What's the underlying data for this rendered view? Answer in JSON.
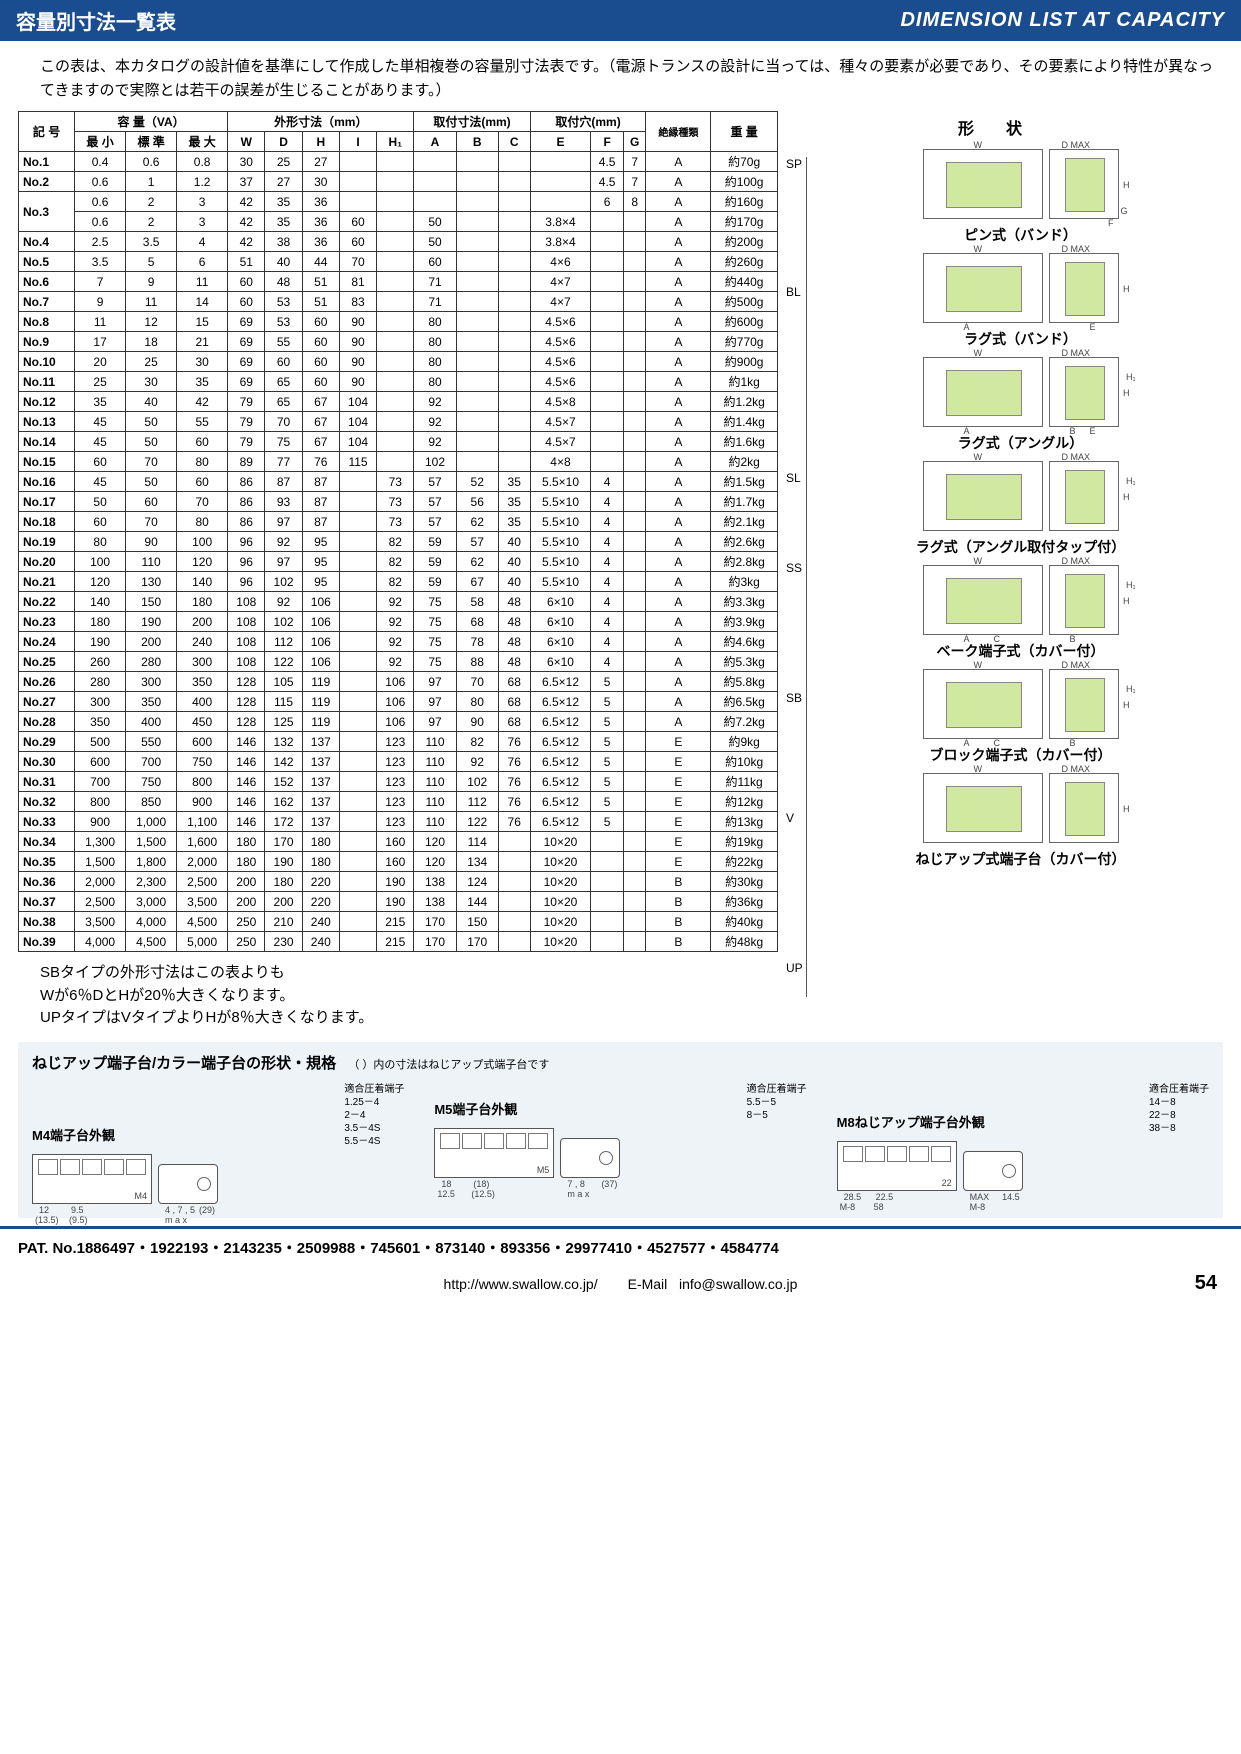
{
  "header": {
    "jp": "容量別寸法一覧表",
    "en": "DIMENSION LIST AT CAPACITY"
  },
  "intro": "この表は、本カタログの設計値を基準にして作成した単相複巻の容量別寸法表です。（電源トランスの設計に当っては、種々の要素が必要であり、その要素により特性が異なってきますので実際とは若干の誤差が生じることがあります。）",
  "table": {
    "headers": {
      "kigo": "記 号",
      "cap": "容 量（VA）",
      "cap_sub": [
        "最 小",
        "標 準",
        "最 大"
      ],
      "outer": "外形寸法（mm）",
      "outer_sub": [
        "W",
        "D",
        "H",
        "I",
        "H₁"
      ],
      "mount": "取付寸法(mm)",
      "mount_sub": [
        "A",
        "B",
        "C"
      ],
      "hole": "取付穴(mm)",
      "hole_sub": [
        "E",
        "F",
        "G"
      ],
      "ins": "絶縁種類",
      "wt": "重 量",
      "shape": "形　状"
    },
    "rows": [
      {
        "no": "No.1",
        "min": "0.4",
        "std": "0.6",
        "max": "0.8",
        "W": "30",
        "D": "25",
        "H": "27",
        "I": "",
        "H1": "",
        "A": "",
        "B": "",
        "C": "",
        "E": "",
        "F": "4.5",
        "G": "7",
        "ins": "A",
        "wt": "約70g"
      },
      {
        "no": "No.2",
        "min": "0.6",
        "std": "1",
        "max": "1.2",
        "W": "37",
        "D": "27",
        "H": "30",
        "I": "",
        "H1": "",
        "A": "",
        "B": "",
        "C": "",
        "E": "",
        "F": "4.5",
        "G": "7",
        "ins": "A",
        "wt": "約100g"
      },
      {
        "no": "No.3",
        "min": "0.6",
        "std": "2",
        "max": "3",
        "W": "42",
        "D": "35",
        "H": "36",
        "I": "",
        "H1": "",
        "A": "",
        "B": "",
        "C": "",
        "E": "",
        "F": "6",
        "G": "8",
        "ins": "A",
        "wt": "約160g",
        "rowspan": 2
      },
      {
        "no": "",
        "min": "0.6",
        "std": "2",
        "max": "3",
        "W": "42",
        "D": "35",
        "H": "36",
        "I": "60",
        "H1": "",
        "A": "50",
        "B": "",
        "C": "",
        "E": "3.8×4",
        "F": "",
        "G": "",
        "ins": "A",
        "wt": "約170g"
      },
      {
        "no": "No.4",
        "min": "2.5",
        "std": "3.5",
        "max": "4",
        "W": "42",
        "D": "38",
        "H": "36",
        "I": "60",
        "H1": "",
        "A": "50",
        "B": "",
        "C": "",
        "E": "3.8×4",
        "F": "",
        "G": "",
        "ins": "A",
        "wt": "約200g"
      },
      {
        "no": "No.5",
        "min": "3.5",
        "std": "5",
        "max": "6",
        "W": "51",
        "D": "40",
        "H": "44",
        "I": "70",
        "H1": "",
        "A": "60",
        "B": "",
        "C": "",
        "E": "4×6",
        "F": "",
        "G": "",
        "ins": "A",
        "wt": "約260g"
      },
      {
        "no": "No.6",
        "min": "7",
        "std": "9",
        "max": "11",
        "W": "60",
        "D": "48",
        "H": "51",
        "I": "81",
        "H1": "",
        "A": "71",
        "B": "",
        "C": "",
        "E": "4×7",
        "F": "",
        "G": "",
        "ins": "A",
        "wt": "約440g"
      },
      {
        "no": "No.7",
        "min": "9",
        "std": "11",
        "max": "14",
        "W": "60",
        "D": "53",
        "H": "51",
        "I": "83",
        "H1": "",
        "A": "71",
        "B": "",
        "C": "",
        "E": "4×7",
        "F": "",
        "G": "",
        "ins": "A",
        "wt": "約500g"
      },
      {
        "no": "No.8",
        "min": "11",
        "std": "12",
        "max": "15",
        "W": "69",
        "D": "53",
        "H": "60",
        "I": "90",
        "H1": "",
        "A": "80",
        "B": "",
        "C": "",
        "E": "4.5×6",
        "F": "",
        "G": "",
        "ins": "A",
        "wt": "約600g"
      },
      {
        "no": "No.9",
        "min": "17",
        "std": "18",
        "max": "21",
        "W": "69",
        "D": "55",
        "H": "60",
        "I": "90",
        "H1": "",
        "A": "80",
        "B": "",
        "C": "",
        "E": "4.5×6",
        "F": "",
        "G": "",
        "ins": "A",
        "wt": "約770g"
      },
      {
        "no": "No.10",
        "min": "20",
        "std": "25",
        "max": "30",
        "W": "69",
        "D": "60",
        "H": "60",
        "I": "90",
        "H1": "",
        "A": "80",
        "B": "",
        "C": "",
        "E": "4.5×6",
        "F": "",
        "G": "",
        "ins": "A",
        "wt": "約900g"
      },
      {
        "no": "No.11",
        "min": "25",
        "std": "30",
        "max": "35",
        "W": "69",
        "D": "65",
        "H": "60",
        "I": "90",
        "H1": "",
        "A": "80",
        "B": "",
        "C": "",
        "E": "4.5×6",
        "F": "",
        "G": "",
        "ins": "A",
        "wt": "約1kg"
      },
      {
        "no": "No.12",
        "min": "35",
        "std": "40",
        "max": "42",
        "W": "79",
        "D": "65",
        "H": "67",
        "I": "104",
        "H1": "",
        "A": "92",
        "B": "",
        "C": "",
        "E": "4.5×8",
        "F": "",
        "G": "",
        "ins": "A",
        "wt": "約1.2kg"
      },
      {
        "no": "No.13",
        "min": "45",
        "std": "50",
        "max": "55",
        "W": "79",
        "D": "70",
        "H": "67",
        "I": "104",
        "H1": "",
        "A": "92",
        "B": "",
        "C": "",
        "E": "4.5×7",
        "F": "",
        "G": "",
        "ins": "A",
        "wt": "約1.4kg"
      },
      {
        "no": "No.14",
        "min": "45",
        "std": "50",
        "max": "60",
        "W": "79",
        "D": "75",
        "H": "67",
        "I": "104",
        "H1": "",
        "A": "92",
        "B": "",
        "C": "",
        "E": "4.5×7",
        "F": "",
        "G": "",
        "ins": "A",
        "wt": "約1.6kg"
      },
      {
        "no": "No.15",
        "min": "60",
        "std": "70",
        "max": "80",
        "W": "89",
        "D": "77",
        "H": "76",
        "I": "115",
        "H1": "",
        "A": "102",
        "B": "",
        "C": "",
        "E": "4×8",
        "F": "",
        "G": "",
        "ins": "A",
        "wt": "約2kg"
      },
      {
        "no": "No.16",
        "min": "45",
        "std": "50",
        "max": "60",
        "W": "86",
        "D": "87",
        "H": "87",
        "I": "",
        "H1": "73",
        "A": "57",
        "B": "52",
        "C": "35",
        "E": "5.5×10",
        "F": "4",
        "G": "",
        "ins": "A",
        "wt": "約1.5kg"
      },
      {
        "no": "No.17",
        "min": "50",
        "std": "60",
        "max": "70",
        "W": "86",
        "D": "93",
        "H": "87",
        "I": "",
        "H1": "73",
        "A": "57",
        "B": "56",
        "C": "35",
        "E": "5.5×10",
        "F": "4",
        "G": "",
        "ins": "A",
        "wt": "約1.7kg"
      },
      {
        "no": "No.18",
        "min": "60",
        "std": "70",
        "max": "80",
        "W": "86",
        "D": "97",
        "H": "87",
        "I": "",
        "H1": "73",
        "A": "57",
        "B": "62",
        "C": "35",
        "E": "5.5×10",
        "F": "4",
        "G": "",
        "ins": "A",
        "wt": "約2.1kg"
      },
      {
        "no": "No.19",
        "min": "80",
        "std": "90",
        "max": "100",
        "W": "96",
        "D": "92",
        "H": "95",
        "I": "",
        "H1": "82",
        "A": "59",
        "B": "57",
        "C": "40",
        "E": "5.5×10",
        "F": "4",
        "G": "",
        "ins": "A",
        "wt": "約2.6kg"
      },
      {
        "no": "No.20",
        "min": "100",
        "std": "110",
        "max": "120",
        "W": "96",
        "D": "97",
        "H": "95",
        "I": "",
        "H1": "82",
        "A": "59",
        "B": "62",
        "C": "40",
        "E": "5.5×10",
        "F": "4",
        "G": "",
        "ins": "A",
        "wt": "約2.8kg"
      },
      {
        "no": "No.21",
        "min": "120",
        "std": "130",
        "max": "140",
        "W": "96",
        "D": "102",
        "H": "95",
        "I": "",
        "H1": "82",
        "A": "59",
        "B": "67",
        "C": "40",
        "E": "5.5×10",
        "F": "4",
        "G": "",
        "ins": "A",
        "wt": "約3kg"
      },
      {
        "no": "No.22",
        "min": "140",
        "std": "150",
        "max": "180",
        "W": "108",
        "D": "92",
        "H": "106",
        "I": "",
        "H1": "92",
        "A": "75",
        "B": "58",
        "C": "48",
        "E": "6×10",
        "F": "4",
        "G": "",
        "ins": "A",
        "wt": "約3.3kg"
      },
      {
        "no": "No.23",
        "min": "180",
        "std": "190",
        "max": "200",
        "W": "108",
        "D": "102",
        "H": "106",
        "I": "",
        "H1": "92",
        "A": "75",
        "B": "68",
        "C": "48",
        "E": "6×10",
        "F": "4",
        "G": "",
        "ins": "A",
        "wt": "約3.9kg"
      },
      {
        "no": "No.24",
        "min": "190",
        "std": "200",
        "max": "240",
        "W": "108",
        "D": "112",
        "H": "106",
        "I": "",
        "H1": "92",
        "A": "75",
        "B": "78",
        "C": "48",
        "E": "6×10",
        "F": "4",
        "G": "",
        "ins": "A",
        "wt": "約4.6kg"
      },
      {
        "no": "No.25",
        "min": "260",
        "std": "280",
        "max": "300",
        "W": "108",
        "D": "122",
        "H": "106",
        "I": "",
        "H1": "92",
        "A": "75",
        "B": "88",
        "C": "48",
        "E": "6×10",
        "F": "4",
        "G": "",
        "ins": "A",
        "wt": "約5.3kg"
      },
      {
        "no": "No.26",
        "min": "280",
        "std": "300",
        "max": "350",
        "W": "128",
        "D": "105",
        "H": "119",
        "I": "",
        "H1": "106",
        "A": "97",
        "B": "70",
        "C": "68",
        "E": "6.5×12",
        "F": "5",
        "G": "",
        "ins": "A",
        "wt": "約5.8kg"
      },
      {
        "no": "No.27",
        "min": "300",
        "std": "350",
        "max": "400",
        "W": "128",
        "D": "115",
        "H": "119",
        "I": "",
        "H1": "106",
        "A": "97",
        "B": "80",
        "C": "68",
        "E": "6.5×12",
        "F": "5",
        "G": "",
        "ins": "A",
        "wt": "約6.5kg"
      },
      {
        "no": "No.28",
        "min": "350",
        "std": "400",
        "max": "450",
        "W": "128",
        "D": "125",
        "H": "119",
        "I": "",
        "H1": "106",
        "A": "97",
        "B": "90",
        "C": "68",
        "E": "6.5×12",
        "F": "5",
        "G": "",
        "ins": "A",
        "wt": "約7.2kg"
      },
      {
        "no": "No.29",
        "min": "500",
        "std": "550",
        "max": "600",
        "W": "146",
        "D": "132",
        "H": "137",
        "I": "",
        "H1": "123",
        "A": "110",
        "B": "82",
        "C": "76",
        "E": "6.5×12",
        "F": "5",
        "G": "",
        "ins": "E",
        "wt": "約9kg"
      },
      {
        "no": "No.30",
        "min": "600",
        "std": "700",
        "max": "750",
        "W": "146",
        "D": "142",
        "H": "137",
        "I": "",
        "H1": "123",
        "A": "110",
        "B": "92",
        "C": "76",
        "E": "6.5×12",
        "F": "5",
        "G": "",
        "ins": "E",
        "wt": "約10kg"
      },
      {
        "no": "No.31",
        "min": "700",
        "std": "750",
        "max": "800",
        "W": "146",
        "D": "152",
        "H": "137",
        "I": "",
        "H1": "123",
        "A": "110",
        "B": "102",
        "C": "76",
        "E": "6.5×12",
        "F": "5",
        "G": "",
        "ins": "E",
        "wt": "約11kg"
      },
      {
        "no": "No.32",
        "min": "800",
        "std": "850",
        "max": "900",
        "W": "146",
        "D": "162",
        "H": "137",
        "I": "",
        "H1": "123",
        "A": "110",
        "B": "112",
        "C": "76",
        "E": "6.5×12",
        "F": "5",
        "G": "",
        "ins": "E",
        "wt": "約12kg"
      },
      {
        "no": "No.33",
        "min": "900",
        "std": "1,000",
        "max": "1,100",
        "W": "146",
        "D": "172",
        "H": "137",
        "I": "",
        "H1": "123",
        "A": "110",
        "B": "122",
        "C": "76",
        "E": "6.5×12",
        "F": "5",
        "G": "",
        "ins": "E",
        "wt": "約13kg"
      },
      {
        "no": "No.34",
        "min": "1,300",
        "std": "1,500",
        "max": "1,600",
        "W": "180",
        "D": "170",
        "H": "180",
        "I": "",
        "H1": "160",
        "A": "120",
        "B": "114",
        "C": "",
        "E": "10×20",
        "F": "",
        "G": "",
        "ins": "E",
        "wt": "約19kg"
      },
      {
        "no": "No.35",
        "min": "1,500",
        "std": "1,800",
        "max": "2,000",
        "W": "180",
        "D": "190",
        "H": "180",
        "I": "",
        "H1": "160",
        "A": "120",
        "B": "134",
        "C": "",
        "E": "10×20",
        "F": "",
        "G": "",
        "ins": "E",
        "wt": "約22kg"
      },
      {
        "no": "No.36",
        "min": "2,000",
        "std": "2,300",
        "max": "2,500",
        "W": "200",
        "D": "180",
        "H": "220",
        "I": "",
        "H1": "190",
        "A": "138",
        "B": "124",
        "C": "",
        "E": "10×20",
        "F": "",
        "G": "",
        "ins": "B",
        "wt": "約30kg"
      },
      {
        "no": "No.37",
        "min": "2,500",
        "std": "3,000",
        "max": "3,500",
        "W": "200",
        "D": "200",
        "H": "220",
        "I": "",
        "H1": "190",
        "A": "138",
        "B": "144",
        "C": "",
        "E": "10×20",
        "F": "",
        "G": "",
        "ins": "B",
        "wt": "約36kg"
      },
      {
        "no": "No.38",
        "min": "3,500",
        "std": "4,000",
        "max": "4,500",
        "W": "250",
        "D": "210",
        "H": "240",
        "I": "",
        "H1": "215",
        "A": "170",
        "B": "150",
        "C": "",
        "E": "10×20",
        "F": "",
        "G": "",
        "ins": "B",
        "wt": "約40kg"
      },
      {
        "no": "No.39",
        "min": "4,000",
        "std": "4,500",
        "max": "5,000",
        "W": "250",
        "D": "230",
        "H": "240",
        "I": "",
        "H1": "215",
        "A": "170",
        "B": "170",
        "C": "",
        "E": "10×20",
        "F": "",
        "G": "",
        "ins": "B",
        "wt": "約48kg"
      }
    ]
  },
  "shape_codes": {
    "SP": "SP",
    "BL": "BL",
    "SL": "SL",
    "SS": "SS",
    "SB": "SB",
    "V": "V",
    "UP": "UP"
  },
  "shapes": [
    {
      "caption": "ピン式（バンド）",
      "labels": {
        "W": "W",
        "D": "D MAX",
        "H": "H",
        "F": "F",
        "G": "G"
      }
    },
    {
      "caption": "ラグ式（バンド）",
      "labels": {
        "W": "W",
        "D": "D MAX",
        "H": "H",
        "A": "A",
        "E": "E"
      }
    },
    {
      "caption": "ラグ式（アングル）",
      "labels": {
        "W": "W",
        "D": "D MAX",
        "H": "H",
        "H1": "H₁",
        "A": "A",
        "E": "E",
        "B": "B"
      }
    },
    {
      "caption": "ラグ式（アングル取付タップ付）",
      "labels": {
        "W": "W",
        "D": "D MAX",
        "H": "H",
        "H1": "H₁"
      }
    },
    {
      "caption": "ベーク端子式（カバー付）",
      "labels": {
        "W": "W",
        "D": "D MAX",
        "H": "H",
        "H1": "H₁",
        "A": "A",
        "B": "B",
        "C": "C"
      }
    },
    {
      "caption": "ブロック端子式（カバー付）",
      "labels": {
        "W": "W",
        "D": "D MAX",
        "H": "H",
        "H1": "H₁",
        "A": "A",
        "B": "B",
        "C": "C"
      }
    },
    {
      "caption": "ねじアップ式端子台（カバー付）",
      "labels": {
        "W": "W",
        "D": "D MAX",
        "H": "H"
      }
    }
  ],
  "notes": [
    "SBタイプの外形寸法はこの表よりも",
    "Wが6％DとHが20％大きくなります。",
    "UPタイプはVタイプよりHが8％大きくなります。"
  ],
  "terminal": {
    "title": "ねじアップ端子台/カラー端子台の形状・規格",
    "title_note": "（ ）内の寸法はねじアップ式端子台です",
    "blocks": [
      {
        "label": "M4端子台外観",
        "sub_title": "適合圧着端子",
        "subs": [
          "1.25－4",
          "2－4",
          "3.5－4S",
          "5.5－4S"
        ],
        "dims": [
          "12",
          "9.5",
          "(13.5)",
          "(9.5)",
          "M4",
          "4 , 7 , 5",
          "m a x",
          "29",
          "(29)"
        ]
      },
      {
        "label": "M5端子台外観",
        "sub_title": "適合圧着端子",
        "subs": [
          "5.5－5",
          "8－5"
        ],
        "dims": [
          "18",
          "(18)",
          "12.5",
          "(12.5)",
          "M5",
          "7 , 8",
          "m a x",
          "37",
          "(37)",
          "12.5"
        ]
      },
      {
        "label": "M8ねじアップ端子台外観",
        "sub_title": "適合圧着端子",
        "subs": [
          "14－8",
          "22－8",
          "38－8"
        ],
        "dims": [
          "28.5",
          "22.5",
          "M-8",
          "58",
          "22",
          "MAX",
          "M-8",
          "8",
          "14.5"
        ]
      }
    ]
  },
  "patent": "PAT. No.1886497・1922193・2143235・2509988・745601・873140・893356・29977410・4527577・4584774",
  "footer": {
    "url": "http://www.swallow.co.jp/",
    "email_label": "E-Mail",
    "email": "info@swallow.co.jp",
    "page": "54"
  }
}
